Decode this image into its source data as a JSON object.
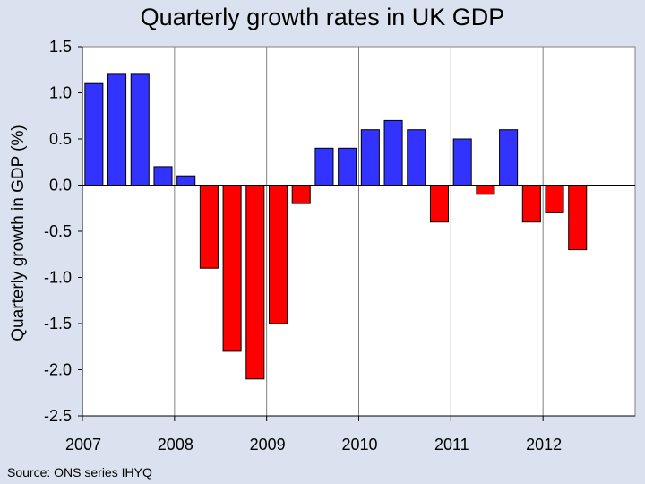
{
  "chart_data": {
    "type": "bar",
    "title": "Quarterly growth rates in UK GDP",
    "xlabel": "",
    "ylabel": "Quarterly growth in GDP (%)",
    "ylim": [
      -2.5,
      1.5
    ],
    "yticks": [
      "1.5",
      "1.0",
      "0.5",
      "0.0",
      "-0.5",
      "-1.0",
      "-1.5",
      "-2.0",
      "-2.5"
    ],
    "year_labels": [
      "2007",
      "2008",
      "2009",
      "2010",
      "2011",
      "2012"
    ],
    "categories": [
      "2007 Q1",
      "2007 Q2",
      "2007 Q3",
      "2007 Q4",
      "2008 Q1",
      "2008 Q2",
      "2008 Q3",
      "2008 Q4",
      "2009 Q1",
      "2009 Q2",
      "2009 Q3",
      "2009 Q4",
      "2010 Q1",
      "2010 Q2",
      "2010 Q3",
      "2010 Q4",
      "2011 Q1",
      "2011 Q2",
      "2011 Q3",
      "2011 Q4",
      "2012 Q1",
      "2012 Q2"
    ],
    "values": [
      1.1,
      1.2,
      1.2,
      0.2,
      0.1,
      -0.9,
      -1.8,
      -2.1,
      -1.5,
      -0.2,
      0.4,
      0.4,
      0.6,
      0.7,
      0.6,
      -0.4,
      0.5,
      -0.1,
      0.6,
      -0.4,
      -0.3,
      -0.7
    ],
    "grid": "vertical lines between years",
    "legend": "none",
    "colors": {
      "positive": "#3333FF",
      "negative": "#FF0000",
      "plot_background": "#FFFFFF",
      "page_background": "#D9E2EE"
    }
  },
  "footer": {
    "source": "Source: ONS series IHYQ"
  }
}
